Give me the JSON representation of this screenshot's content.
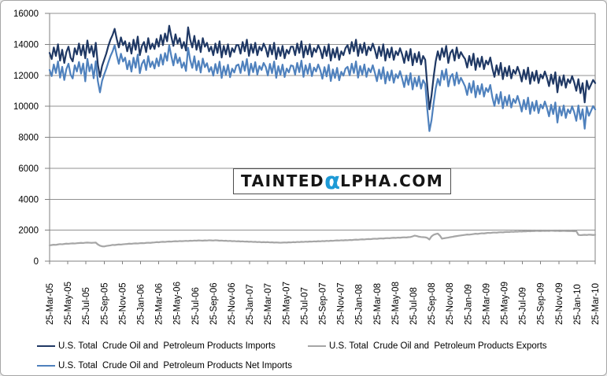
{
  "watermark": {
    "prefix": "TAINTED",
    "alpha": "α",
    "suffix": "LPHA.COM",
    "alpha_color": "#1e9ad6",
    "text_color": "#151515"
  },
  "chart_data": {
    "type": "line",
    "title": "",
    "xlabel": "",
    "ylabel": "",
    "x_unit": "weekly",
    "x_range": [
      "25-Mar-05",
      "25-Mar-10"
    ],
    "ylim": [
      0,
      16000
    ],
    "y_ticks": [
      0,
      2000,
      4000,
      6000,
      8000,
      10000,
      12000,
      14000,
      16000
    ],
    "grid": true,
    "grid_color": "#909090",
    "axis_color": "#808080",
    "legend_position": "bottom",
    "x_tick_labels": [
      "25-Mar-05",
      "25-May-05",
      "25-Jul-05",
      "25-Sep-05",
      "25-Nov-05",
      "25-Jan-06",
      "25-Mar-06",
      "25-May-06",
      "25-Jul-06",
      "25-Sep-06",
      "25-Nov-06",
      "25-Jan-07",
      "25-Mar-07",
      "25-May-07",
      "25-Jul-07",
      "25-Sep-07",
      "25-Nov-07",
      "25-Jan-08",
      "25-Mar-08",
      "25-May-08",
      "25-Jul-08",
      "25-Sep-08",
      "25-Nov-08",
      "25-Jan-09",
      "25-Mar-09",
      "25-May-09",
      "25-Jul-09",
      "25-Sep-09",
      "25-Nov-09",
      "25-Jan-10",
      "25-Mar-10"
    ],
    "series": [
      {
        "id": "imports",
        "name": "U.S. Total  Crude Oil and  Petroleum Products Imports",
        "color": "#1F3864",
        "values": [
          13450,
          13050,
          13800,
          13250,
          14000,
          12950,
          13650,
          12800,
          13500,
          13850,
          13150,
          12900,
          13750,
          13350,
          14050,
          13300,
          13950,
          13100,
          14250,
          13450,
          13900,
          13200,
          14100,
          12700,
          11900,
          12600,
          13000,
          13400,
          13900,
          14300,
          14600,
          15000,
          14350,
          13800,
          14450,
          13950,
          14200,
          13550,
          14100,
          13400,
          14300,
          13650,
          14500,
          13300,
          13900,
          14150,
          13500,
          14400,
          13700,
          14050,
          13700,
          14350,
          13850,
          14600,
          13950,
          14700,
          14200,
          15200,
          14500,
          13900,
          14650,
          14050,
          14400,
          13750,
          14150,
          13600,
          15100,
          14300,
          13800,
          14550,
          13650,
          14250,
          13500,
          14400,
          13850,
          14100,
          13550,
          13850,
          13300,
          14050,
          13450,
          14200,
          13150,
          13900,
          13350,
          14000,
          13200,
          13750,
          13500,
          13950,
          13950,
          13400,
          14150,
          13550,
          14300,
          13250,
          14000,
          13450,
          14100,
          13300,
          13850,
          13600,
          14050,
          13750,
          13200,
          13950,
          13350,
          14100,
          13050,
          13800,
          13250,
          13900,
          13100,
          13650,
          13400,
          13850,
          13850,
          13300,
          14050,
          13450,
          14200,
          13150,
          13900,
          13350,
          14000,
          13200,
          13750,
          13500,
          13950,
          13650,
          13100,
          13850,
          13250,
          14000,
          12950,
          13700,
          13150,
          13800,
          13000,
          13550,
          13300,
          13750,
          13950,
          13400,
          14150,
          13550,
          14300,
          13250,
          14000,
          13450,
          14100,
          13300,
          13850,
          13600,
          14050,
          13650,
          13100,
          13850,
          13250,
          14000,
          12950,
          13700,
          13150,
          13800,
          13000,
          13550,
          13300,
          13750,
          13350,
          12800,
          13550,
          12950,
          13700,
          12650,
          13400,
          12850,
          13500,
          12700,
          13250,
          13000,
          11300,
          9800,
          10700,
          11900,
          12900,
          13550,
          13000,
          13750,
          13200,
          13900,
          12800,
          13450,
          13650,
          12950,
          13800,
          13100,
          13500,
          13250,
          13050,
          12500,
          13250,
          12650,
          13400,
          12350,
          13100,
          12550,
          13200,
          12400,
          12950,
          12700,
          13150,
          12450,
          11900,
          12650,
          12050,
          12800,
          11750,
          12500,
          11950,
          12600,
          11800,
          12350,
          12100,
          12550,
          12150,
          11600,
          12350,
          11750,
          12500,
          11450,
          12200,
          11650,
          12300,
          11500,
          12050,
          11800,
          12250,
          11850,
          11300,
          12050,
          11450,
          12200,
          10900,
          11900,
          11350,
          12000,
          11200,
          11750,
          11500,
          11950,
          11550,
          11000,
          11750,
          10850,
          11500,
          10250,
          11650,
          11100,
          11400,
          11700,
          11500
        ]
      },
      {
        "id": "exports",
        "name": "U.S. Total  Crude Oil and  Petroleum Products Exports",
        "color": "#A6A6A6",
        "values": [
          1020,
          1040,
          1060,
          1050,
          1080,
          1100,
          1090,
          1110,
          1130,
          1120,
          1140,
          1150,
          1140,
          1160,
          1170,
          1180,
          1170,
          1190,
          1200,
          1190,
          1180,
          1190,
          1200,
          1080,
          1000,
          960,
          950,
          980,
          1000,
          1020,
          1050,
          1040,
          1060,
          1080,
          1070,
          1090,
          1100,
          1110,
          1130,
          1120,
          1140,
          1150,
          1140,
          1160,
          1170,
          1160,
          1180,
          1190,
          1180,
          1200,
          1210,
          1230,
          1220,
          1240,
          1250,
          1240,
          1260,
          1270,
          1260,
          1280,
          1290,
          1280,
          1300,
          1290,
          1300,
          1310,
          1300,
          1320,
          1310,
          1330,
          1320,
          1340,
          1330,
          1320,
          1340,
          1330,
          1350,
          1340,
          1330,
          1350,
          1340,
          1320,
          1330,
          1310,
          1320,
          1300,
          1310,
          1290,
          1300,
          1280,
          1290,
          1270,
          1280,
          1260,
          1270,
          1250,
          1260,
          1240,
          1250,
          1230,
          1240,
          1220,
          1230,
          1220,
          1230,
          1210,
          1220,
          1200,
          1210,
          1200,
          1190,
          1200,
          1210,
          1200,
          1220,
          1210,
          1230,
          1220,
          1240,
          1230,
          1250,
          1240,
          1260,
          1250,
          1270,
          1260,
          1280,
          1270,
          1290,
          1280,
          1300,
          1290,
          1310,
          1300,
          1320,
          1310,
          1330,
          1340,
          1330,
          1350,
          1340,
          1360,
          1350,
          1370,
          1360,
          1380,
          1390,
          1380,
          1400,
          1410,
          1400,
          1420,
          1430,
          1420,
          1440,
          1450,
          1440,
          1460,
          1470,
          1460,
          1480,
          1490,
          1480,
          1500,
          1510,
          1500,
          1520,
          1510,
          1530,
          1540,
          1530,
          1550,
          1560,
          1600,
          1650,
          1620,
          1580,
          1560,
          1550,
          1540,
          1500,
          1400,
          1600,
          1700,
          1750,
          1780,
          1650,
          1450,
          1480,
          1500,
          1520,
          1550,
          1570,
          1600,
          1620,
          1640,
          1660,
          1680,
          1700,
          1720,
          1710,
          1730,
          1750,
          1770,
          1760,
          1780,
          1800,
          1790,
          1810,
          1830,
          1820,
          1840,
          1850,
          1840,
          1860,
          1870,
          1860,
          1880,
          1890,
          1880,
          1900,
          1890,
          1910,
          1900,
          1920,
          1910,
          1930,
          1920,
          1940,
          1930,
          1950,
          1940,
          1960,
          1950,
          1940,
          1960,
          1950,
          1960,
          1950,
          1970,
          1960,
          1950,
          1960,
          1940,
          1950,
          1960,
          1950,
          1940,
          1950,
          1940,
          1930,
          1940,
          1700,
          1680,
          1690,
          1700,
          1690,
          1710,
          1700,
          1690,
          1700
        ]
      },
      {
        "id": "net-imports",
        "name": "U.S. Total  Crude Oil and  Petroleum Products Net Imports",
        "color": "#4F81BD",
        "values": [
          12350,
          11950,
          12700,
          12150,
          12900,
          11850,
          12550,
          11700,
          12400,
          12750,
          12050,
          11800,
          12650,
          12250,
          12860,
          12110,
          12760,
          11610,
          13060,
          12260,
          12710,
          11810,
          12910,
          11620,
          10900,
          11640,
          12050,
          12420,
          12840,
          13240,
          13540,
          13940,
          13290,
          12740,
          13390,
          12890,
          13140,
          12390,
          12940,
          12240,
          13140,
          12490,
          13340,
          12140,
          12740,
          12990,
          12340,
          13240,
          12540,
          12890,
          12440,
          13090,
          12590,
          13340,
          12690,
          13440,
          12940,
          13940,
          13240,
          12640,
          13390,
          12790,
          13140,
          12490,
          12830,
          12280,
          13780,
          12980,
          12480,
          13230,
          12330,
          12930,
          12180,
          13080,
          12530,
          12780,
          12230,
          12530,
          11980,
          12730,
          12130,
          12880,
          11830,
          12580,
          12030,
          12680,
          11880,
          12430,
          12180,
          12630,
          12700,
          12150,
          12900,
          12300,
          13050,
          12000,
          12750,
          12200,
          12850,
          12050,
          12600,
          12350,
          12800,
          12540,
          11990,
          12740,
          12140,
          12890,
          11840,
          12590,
          12040,
          12690,
          11890,
          12440,
          12190,
          12640,
          12600,
          12050,
          12800,
          12200,
          12950,
          11900,
          12650,
          12100,
          12750,
          11950,
          12500,
          12250,
          12700,
          12330,
          11780,
          12530,
          11930,
          12680,
          11630,
          12380,
          11830,
          12480,
          11680,
          12230,
          11980,
          12430,
          12550,
          12000,
          12750,
          12150,
          12900,
          11850,
          12600,
          12050,
          12700,
          11900,
          12450,
          12200,
          12650,
          12170,
          11620,
          12370,
          11770,
          12520,
          11470,
          12220,
          11670,
          12320,
          11520,
          12070,
          11820,
          12270,
          11790,
          11240,
          11990,
          11390,
          12140,
          11090,
          11840,
          11290,
          11940,
          11140,
          11690,
          11440,
          9800,
          8400,
          9100,
          10200,
          11150,
          11770,
          11350,
          12300,
          11720,
          12400,
          11280,
          11900,
          12080,
          11350,
          12180,
          11460,
          11840,
          11570,
          11280,
          10730,
          11480,
          10880,
          11630,
          10580,
          11330,
          10780,
          11430,
          10630,
          11180,
          10930,
          11380,
          10570,
          10020,
          10770,
          10170,
          10920,
          9870,
          10620,
          10070,
          10720,
          9920,
          10470,
          10220,
          10670,
          10210,
          9660,
          10410,
          9810,
          10560,
          9510,
          10260,
          9710,
          10360,
          9560,
          10110,
          9860,
          10310,
          9900,
          9350,
          10100,
          9500,
          10250,
          8950,
          9950,
          9400,
          10050,
          9250,
          9800,
          9550,
          10000,
          9620,
          9060,
          10050,
          9170,
          9810,
          8550,
          9960,
          9390,
          9700,
          10010,
          9800
        ]
      }
    ]
  }
}
